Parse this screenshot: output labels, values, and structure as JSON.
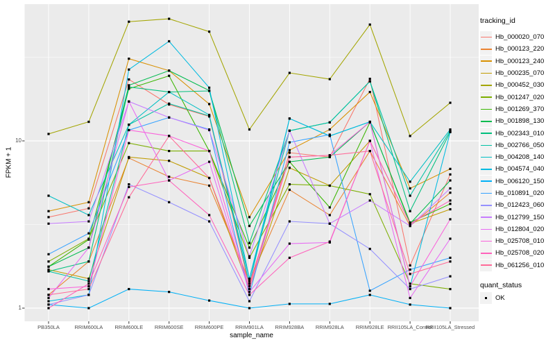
{
  "chart_data": {
    "type": "line",
    "xlabel": "sample_name",
    "ylabel": "FPKM + 1",
    "y_scale": "log10",
    "ylim": [
      0.93,
      65
    ],
    "grid": true,
    "legend_position": "right",
    "legend_title": "tracking_id",
    "panel_bg": "#EBEBEB",
    "grid_color": "#FFFFFF",
    "tick_label_color": "#4d4d4d",
    "marker": "black-square",
    "y_ticks": [
      {
        "label": "1",
        "value": 1
      },
      {
        "label": "10",
        "value": 10
      }
    ],
    "y_minor_ticks": [
      3.1623,
      31.6228
    ],
    "categories": [
      "PB350LA",
      "RRIM600LA",
      "RRIM600LE",
      "RRIM600SE",
      "RRIM600PE",
      "RRIM901LA",
      "RRIM928BA",
      "RRIM928LA",
      "RRIM928LE",
      "RRII105LA_Control",
      "RRII105LA_Stressed"
    ],
    "series": [
      {
        "name": "Hb_000020_070",
        "color": "#F8766D",
        "values": [
          3.5,
          3.95,
          23.3,
          16.5,
          14.0,
          1.35,
          8.5,
          8.0,
          23.5,
          1.8,
          6.3
        ]
      },
      {
        "name": "Hb_000123_220",
        "color": "#EA8331",
        "values": [
          1.2,
          1.9,
          7.9,
          6.1,
          5.4,
          1.45,
          5.1,
          3.6,
          8.7,
          3.1,
          4.9
        ]
      },
      {
        "name": "Hb_000123_240",
        "color": "#D89000",
        "values": [
          3.8,
          4.3,
          31.0,
          26.3,
          16.6,
          3.5,
          8.8,
          11.7,
          19.6,
          5.2,
          6.8
        ]
      },
      {
        "name": "Hb_000235_070",
        "color": "#C09B00",
        "values": [
          1.7,
          1.5,
          8.0,
          7.6,
          6.0,
          1.3,
          6.9,
          5.4,
          10.0,
          3.2,
          3.9
        ]
      },
      {
        "name": "Hb_000452_030",
        "color": "#A3A500",
        "values": [
          11.0,
          13.0,
          51.6,
          53.7,
          45.0,
          11.7,
          25.5,
          23.4,
          49.6,
          10.7,
          16.9
        ]
      },
      {
        "name": "Hb_001247_020",
        "color": "#7CAE00",
        "values": [
          1.9,
          2.6,
          9.7,
          8.7,
          8.7,
          2.0,
          5.5,
          5.4,
          4.8,
          1.4,
          1.3
        ]
      },
      {
        "name": "Hb_001269_370",
        "color": "#39B600",
        "values": [
          1.77,
          2.57,
          20.5,
          24.5,
          8.7,
          2.3,
          7.5,
          4.0,
          12.9,
          3.25,
          4.2
        ]
      },
      {
        "name": "Hb_001898_130",
        "color": "#00BB4E",
        "values": [
          1.77,
          2.3,
          21.5,
          26.3,
          20.0,
          3.1,
          7.5,
          8.0,
          13.0,
          3.2,
          5.8
        ]
      },
      {
        "name": "Hb_002343_010",
        "color": "#00BF7D",
        "values": [
          1.66,
          1.9,
          21.0,
          19.6,
          19.9,
          2.45,
          11.5,
          12.9,
          22.7,
          3.8,
          11.3
        ]
      },
      {
        "name": "Hb_002766_050",
        "color": "#00C1A3",
        "values": [
          1.66,
          1.45,
          12.5,
          16.7,
          14.1,
          1.5,
          11.5,
          12.9,
          22.7,
          4.7,
          11.5
        ]
      },
      {
        "name": "Hb_004208_140",
        "color": "#00BFC4",
        "values": [
          4.7,
          3.6,
          12.5,
          19.6,
          14.3,
          1.4,
          13.6,
          10.7,
          13.0,
          5.7,
          11.7
        ]
      },
      {
        "name": "Hb_004574_040",
        "color": "#00BAE0",
        "values": [
          1.1,
          1.2,
          26.7,
          39.4,
          20.8,
          1.5,
          13.6,
          10.7,
          13.0,
          1.35,
          11.3
        ]
      },
      {
        "name": "Hb_006120_150",
        "color": "#00B0F6",
        "values": [
          1.05,
          1.0,
          1.3,
          1.25,
          1.11,
          1.0,
          1.06,
          1.06,
          1.2,
          1.05,
          1.0
        ]
      },
      {
        "name": "Hb_010891_020",
        "color": "#35A2FF",
        "values": [
          2.1,
          2.8,
          11.6,
          13.8,
          11.7,
          1.2,
          9.8,
          10.9,
          1.27,
          1.7,
          2.0
        ]
      },
      {
        "name": "Hb_012423_060",
        "color": "#9590FF",
        "values": [
          1.05,
          1.2,
          5.5,
          4.3,
          3.3,
          1.1,
          3.3,
          3.2,
          2.26,
          1.3,
          1.55
        ]
      },
      {
        "name": "Hb_012799_150",
        "color": "#C77CFF",
        "values": [
          3.2,
          3.3,
          17.2,
          13.8,
          11.6,
          2.04,
          11.5,
          3.2,
          4.4,
          3.1,
          5.2
        ]
      },
      {
        "name": "Hb_012804_020",
        "color": "#E76BF3",
        "values": [
          1.15,
          2.3,
          17.2,
          5.8,
          7.5,
          1.25,
          2.43,
          2.47,
          10.0,
          1.15,
          2.6
        ]
      },
      {
        "name": "Hb_025708_010",
        "color": "#FA62DB",
        "values": [
          1.3,
          1.35,
          11.6,
          10.7,
          8.7,
          1.3,
          8.0,
          8.2,
          13.0,
          1.35,
          3.4
        ]
      },
      {
        "name": "Hb_025708_020",
        "color": "#FF62BC",
        "values": [
          1.0,
          1.4,
          5.3,
          5.8,
          3.6,
          1.2,
          2.0,
          2.5,
          10.0,
          3.2,
          4.4
        ]
      },
      {
        "name": "Hb_061256_010",
        "color": "#FF6A98",
        "values": [
          1.2,
          1.3,
          4.6,
          10.7,
          6.0,
          1.4,
          8.0,
          8.2,
          8.7,
          1.6,
          1.9
        ]
      }
    ],
    "quant_legend": {
      "title": "quant_status",
      "items": [
        {
          "label": "OK",
          "marker": "black-square"
        }
      ]
    }
  }
}
